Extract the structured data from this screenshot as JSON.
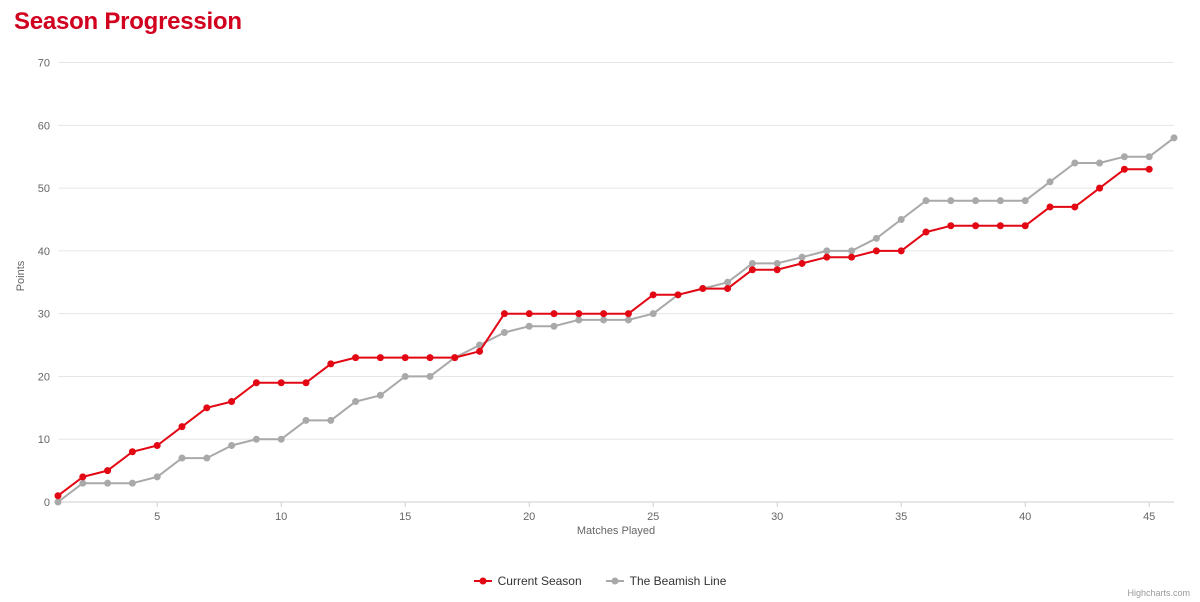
{
  "title": "Season Progression",
  "title_color": "#d1001f",
  "chart": {
    "type": "line",
    "background_color": "#ffffff",
    "grid_color": "#e6e6e6",
    "baseline_color": "#cccccc",
    "xlabel": "Matches Played",
    "ylabel": "Points",
    "label_color": "#666666",
    "label_fontsize": 11,
    "xlim": [
      1,
      46
    ],
    "ylim": [
      0,
      72
    ],
    "xtick_step": 5,
    "ytick_step": 10,
    "marker_radius": 3.5,
    "line_width": 2,
    "series": [
      {
        "name": "Current Season",
        "color": "#e30613",
        "data": [
          1,
          4,
          5,
          8,
          9,
          12,
          15,
          16,
          19,
          19,
          19,
          22,
          23,
          23,
          23,
          23,
          23,
          24,
          30,
          30,
          30,
          30,
          30,
          30,
          33,
          33,
          34,
          34,
          37,
          37,
          38,
          39,
          39,
          40,
          40,
          43,
          44,
          44,
          44,
          44,
          47,
          47,
          50,
          53,
          53
        ]
      },
      {
        "name": "The Beamish Line",
        "color": "#a9a9a9",
        "data": [
          0,
          3,
          3,
          3,
          4,
          7,
          7,
          9,
          10,
          10,
          13,
          13,
          16,
          17,
          20,
          20,
          23,
          25,
          27,
          28,
          28,
          29,
          29,
          29,
          30,
          33,
          34,
          35,
          38,
          38,
          39,
          40,
          40,
          42,
          45,
          48,
          48,
          48,
          48,
          48,
          51,
          54,
          54,
          55,
          55,
          58
        ]
      }
    ]
  },
  "legend": {
    "items": [
      {
        "label": "Current Season",
        "color": "#e30613"
      },
      {
        "label": "The Beamish Line",
        "color": "#a9a9a9"
      }
    ]
  },
  "credit": "Highcharts.com"
}
